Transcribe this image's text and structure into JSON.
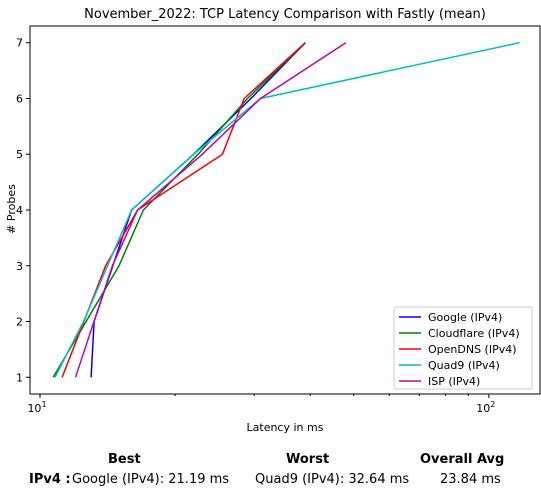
{
  "chart_data": {
    "type": "line",
    "title": "November_2022: TCP Latency Comparison with Fastly (mean)",
    "xlabel": "Latency in ms",
    "ylabel": "# Probes",
    "xscale": "log",
    "xlim": [
      9.5,
      130
    ],
    "ylim": [
      0.7,
      7.3
    ],
    "xticks": [
      {
        "value": 10,
        "base": "10",
        "exp": "1"
      },
      {
        "value": 100,
        "base": "10",
        "exp": "2"
      }
    ],
    "yticks": [
      1,
      2,
      3,
      4,
      5,
      6,
      7
    ],
    "grid": false,
    "legend": "bottom-right",
    "series": [
      {
        "name": "Google (IPv4)",
        "color": "#0000ff",
        "x": [
          13.0,
          13.2,
          16.0,
          22.0,
          29.5,
          39.0
        ],
        "y": [
          1,
          2,
          4,
          5,
          6,
          7
        ]
      },
      {
        "name": "Cloudflare (IPv4)",
        "color": "#008000",
        "x": [
          10.7,
          15.0,
          17.0,
          22.5,
          29.0,
          39.0
        ],
        "y": [
          1,
          3,
          4,
          5,
          6,
          7
        ]
      },
      {
        "name": "OpenDNS (IPv4)",
        "color": "#ff0000",
        "x": [
          11.2,
          14.0,
          16.5,
          25.5,
          28.5,
          39.0
        ],
        "y": [
          1,
          3,
          4,
          5,
          6,
          7
        ]
      },
      {
        "name": "Quad9 (IPv4)",
        "color": "#00bfbf",
        "x": [
          10.8,
          12.5,
          16.0,
          22.0,
          31.0,
          117.0
        ],
        "y": [
          1,
          2,
          4,
          5,
          6,
          7
        ]
      },
      {
        "name": "ISP (IPv4)",
        "color": "#bf00bf",
        "x": [
          12.0,
          14.5,
          16.5,
          23.0,
          31.0,
          48.0
        ],
        "y": [
          1,
          3,
          4,
          5,
          6,
          7
        ]
      }
    ]
  },
  "summary": {
    "best_header": "Best",
    "worst_header": "Worst",
    "avg_header": "Overall Avg",
    "row_label": "IPv4 :",
    "best_value": "Google (IPv4): 21.19 ms",
    "worst_value": "Quad9 (IPv4): 32.64 ms",
    "avg_value": "23.84 ms"
  }
}
